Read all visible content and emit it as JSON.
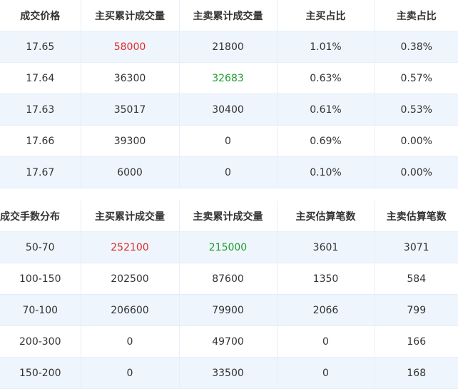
{
  "price_table": {
    "headers": [
      "成交价格",
      "主买累计成交量",
      "主卖累计成交量",
      "主买占比",
      "主卖占比"
    ],
    "rows": [
      [
        "17.65",
        "58000",
        "21800",
        "1.01%",
        "0.38%"
      ],
      [
        "17.64",
        "36300",
        "32683",
        "0.63%",
        "0.57%"
      ],
      [
        "17.63",
        "35017",
        "30400",
        "0.61%",
        "0.53%"
      ],
      [
        "17.66",
        "39300",
        "0",
        "0.69%",
        "0.00%"
      ],
      [
        "17.67",
        "6000",
        "0",
        "0.10%",
        "0.00%"
      ]
    ],
    "highlight": {
      "buy_max_color": "#e02a2a",
      "sell_max_color": "#1f9c2f"
    }
  },
  "lot_table": {
    "headers": [
      "成交手数分布",
      "主买累计成交量",
      "主卖累计成交量",
      "主买估算笔数",
      "主卖估算笔数"
    ],
    "rows": [
      [
        "50-70",
        "252100",
        "215000",
        "3601",
        "3071"
      ],
      [
        "100-150",
        "202500",
        "87600",
        "1350",
        "584"
      ],
      [
        "70-100",
        "206600",
        "79900",
        "2066",
        "799"
      ],
      [
        "200-300",
        "0",
        "49700",
        "0",
        "166"
      ],
      [
        "150-200",
        "0",
        "33500",
        "0",
        "168"
      ]
    ]
  }
}
